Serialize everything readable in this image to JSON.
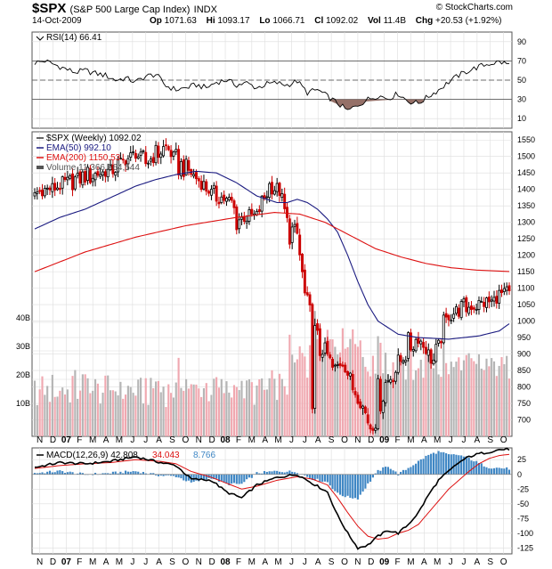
{
  "header": {
    "symbol": "$SPX",
    "name": "(S&P 500 Large Cap Index)",
    "exchange": "INDX",
    "date": "14-Oct-2009",
    "copyright": "© StockCharts.com",
    "quote": {
      "op_label": "Op",
      "op": "1071.63",
      "hi_label": "Hi",
      "hi": "1093.17",
      "lo_label": "Lo",
      "lo": "1066.71",
      "cl_label": "Cl",
      "cl": "1092.02",
      "vol_label": "Vol",
      "vol": "11.4B",
      "chg_label": "Chg",
      "chg": "+20.53 (+1.92%)"
    }
  },
  "colors": {
    "up": "#000000",
    "down": "#cc0000",
    "ema50": "#1a1a80",
    "ema200": "#dd1111",
    "vol_up": "#b5b5b5",
    "vol_down": "#f0a8b0",
    "rsi_low": "#8a6058",
    "macd_line": "#000000",
    "signal_line": "#dd1111",
    "histogram": "#3e86c4",
    "grid": "#dddddd"
  },
  "chart_data": [
    {
      "type": "line",
      "panel": "RSI",
      "legend": "RSI(14) 66.41",
      "y_ticks": [
        10,
        30,
        50,
        70,
        90
      ],
      "ylim": [
        0,
        100
      ],
      "reference_lines": [
        30,
        50,
        70
      ],
      "x": [
        0,
        4,
        8,
        12,
        16,
        20,
        24,
        28,
        32,
        36,
        40,
        44,
        48,
        52,
        56,
        60,
        64,
        68,
        72,
        76,
        80,
        84,
        88,
        92,
        96,
        100,
        104,
        108,
        112,
        116,
        120,
        124,
        128,
        132,
        136,
        140,
        144,
        148,
        152,
        156,
        160,
        164,
        168,
        172,
        176,
        180,
        184,
        188
      ],
      "values": [
        68,
        70,
        66,
        62,
        58,
        60,
        57,
        55,
        50,
        52,
        48,
        54,
        56,
        44,
        40,
        42,
        45,
        42,
        48,
        50,
        45,
        47,
        42,
        46,
        47,
        45,
        49,
        37,
        40,
        33,
        26,
        18,
        24,
        30,
        34,
        31,
        36,
        28,
        26,
        33,
        40,
        48,
        55,
        60,
        64,
        67,
        69,
        66.41
      ]
    },
    {
      "type": "candlestick",
      "panel": "Price",
      "legend": [
        "$SPX (Weekly) 1092.02",
        "EMA(50) 992.10",
        "EMA(200) 1150.53",
        "Volume 11,366,764,544"
      ],
      "y_ticks": [
        700,
        750,
        800,
        850,
        900,
        950,
        1000,
        1050,
        1100,
        1150,
        1200,
        1250,
        1300,
        1350,
        1400,
        1450,
        1500,
        1550
      ],
      "ylim": [
        650,
        1575
      ],
      "volume_ticks": [
        "10B",
        "20B",
        "30B",
        "40B"
      ],
      "volume_ylim": [
        0,
        50
      ],
      "x_months": [
        "N",
        "D",
        "07",
        "F",
        "M",
        "A",
        "M",
        "J",
        "J",
        "A",
        "S",
        "O",
        "N",
        "D",
        "08",
        "F",
        "M",
        "A",
        "M",
        "J",
        "J",
        "A",
        "S",
        "O",
        "N",
        "D",
        "09",
        "F",
        "M",
        "A",
        "M",
        "J",
        "J",
        "A",
        "S",
        "O"
      ],
      "close_anchors_x": [
        0,
        10,
        20,
        30,
        40,
        44,
        52,
        58,
        62,
        70,
        78,
        80,
        88,
        93,
        97,
        100,
        104,
        106,
        108,
        110,
        114,
        118,
        122,
        126,
        130,
        133,
        138,
        141,
        145,
        148,
        152,
        158,
        164,
        170,
        176,
        181,
        185,
        188
      ],
      "close_anchors_y": [
        1390,
        1410,
        1440,
        1455,
        1510,
        1480,
        1530,
        1470,
        1450,
        1390,
        1360,
        1310,
        1320,
        1410,
        1400,
        1280,
        1260,
        1130,
        1000,
        880,
        930,
        850,
        880,
        800,
        740,
        680,
        800,
        830,
        880,
        920,
        950,
        880,
        1020,
        1040,
        1050,
        1060,
        1080,
        1092.02
      ],
      "ema50_anchors_y": [
        1280,
        1315,
        1340,
        1375,
        1410,
        1430,
        1445,
        1455,
        1450,
        1420,
        1380,
        1360,
        1360,
        1370,
        1360,
        1340,
        1310,
        1270,
        1200,
        1120,
        1050,
        1000,
        960,
        950,
        945,
        955,
        970,
        992.1
      ],
      "ema50_anchors_x": [
        0,
        10,
        20,
        30,
        40,
        48,
        56,
        64,
        72,
        80,
        88,
        96,
        100,
        104,
        108,
        112,
        116,
        120,
        124,
        128,
        132,
        136,
        144,
        152,
        164,
        176,
        184,
        188
      ],
      "ema200_anchors_x": [
        0,
        20,
        40,
        60,
        80,
        95,
        105,
        115,
        125,
        135,
        145,
        155,
        165,
        175,
        188
      ],
      "ema200_anchors_y": [
        1150,
        1210,
        1255,
        1290,
        1315,
        1330,
        1325,
        1300,
        1260,
        1220,
        1195,
        1175,
        1162,
        1155,
        1150.53
      ]
    },
    {
      "type": "line",
      "panel": "MACD",
      "legend": [
        "MACD(12,26,9) 42.808",
        "34.043",
        "8.766"
      ],
      "y_ticks": [
        25,
        0,
        -25,
        -50,
        -75,
        -100,
        -125
      ],
      "ylim": [
        -135,
        45
      ],
      "anchors_x": [
        0,
        10,
        20,
        30,
        40,
        50,
        56,
        62,
        70,
        76,
        82,
        88,
        96,
        104,
        110,
        116,
        120,
        124,
        128,
        132,
        136,
        140,
        144,
        148,
        152,
        156,
        160,
        164,
        168,
        172,
        176,
        180,
        184,
        188
      ],
      "macd_anchors": [
        12,
        20,
        18,
        22,
        30,
        20,
        15,
        -8,
        -10,
        -30,
        -40,
        -18,
        -5,
        0,
        -15,
        -30,
        -70,
        -100,
        -125,
        -120,
        -105,
        -95,
        -100,
        -85,
        -65,
        -35,
        -10,
        5,
        20,
        30,
        35,
        38,
        42,
        42.808
      ],
      "signal_anchors": [
        10,
        15,
        18,
        20,
        25,
        22,
        18,
        5,
        -5,
        -15,
        -25,
        -20,
        -10,
        -4,
        -8,
        -18,
        -40,
        -65,
        -88,
        -105,
        -110,
        -108,
        -100,
        -95,
        -85,
        -65,
        -45,
        -25,
        -10,
        5,
        18,
        27,
        32,
        34.043
      ]
    }
  ]
}
